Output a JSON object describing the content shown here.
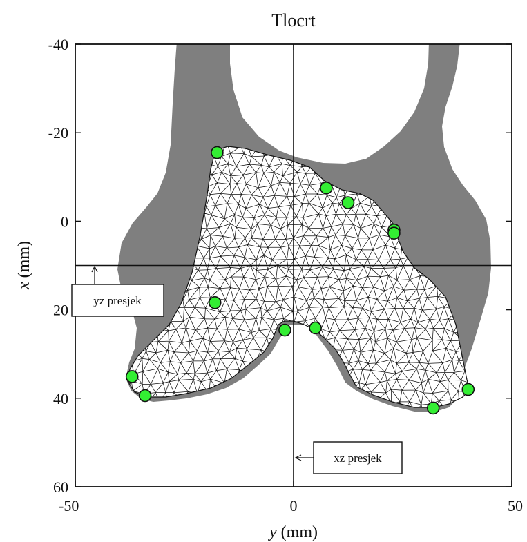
{
  "chart_data": {
    "type": "scatter",
    "title": "Tlocrt",
    "xlabel_var": "y",
    "xlabel_unit": " (mm)",
    "ylabel_var": "x",
    "ylabel_unit": " (mm)",
    "xlim": [
      -50,
      50
    ],
    "ylim": [
      -40,
      60
    ],
    "y_inverted": true,
    "x_ticks": [
      "-50",
      "0",
      "50"
    ],
    "x_tick_values": [
      -50,
      0,
      50
    ],
    "y_ticks": [
      "-40",
      "-20",
      "0",
      "20",
      "40",
      "60"
    ],
    "y_tick_values": [
      -40,
      -20,
      0,
      20,
      40,
      60
    ],
    "grid": false,
    "reference_lines": {
      "vertical_y": 0,
      "horizontal_x": 10
    },
    "annotations": [
      {
        "id": "yz",
        "text": "yz presjek"
      },
      {
        "id": "xz",
        "text": "xz presjek"
      }
    ],
    "landmarks": {
      "y": [
        -17.5,
        7.5,
        12.5,
        23,
        23,
        -18,
        -2,
        5,
        -37,
        -34,
        32,
        40
      ],
      "x": [
        -15.5,
        -7.5,
        -4.2,
        2,
        2.7,
        18.4,
        24.6,
        24.1,
        35.1,
        39.4,
        42.2,
        38
      ],
      "color": "#33ee33"
    },
    "colors": {
      "bone_gray": "#7f7f7f",
      "mesh_fill": "#ffffff",
      "mesh_line": "#111111",
      "landmark": "#33ee33"
    }
  }
}
